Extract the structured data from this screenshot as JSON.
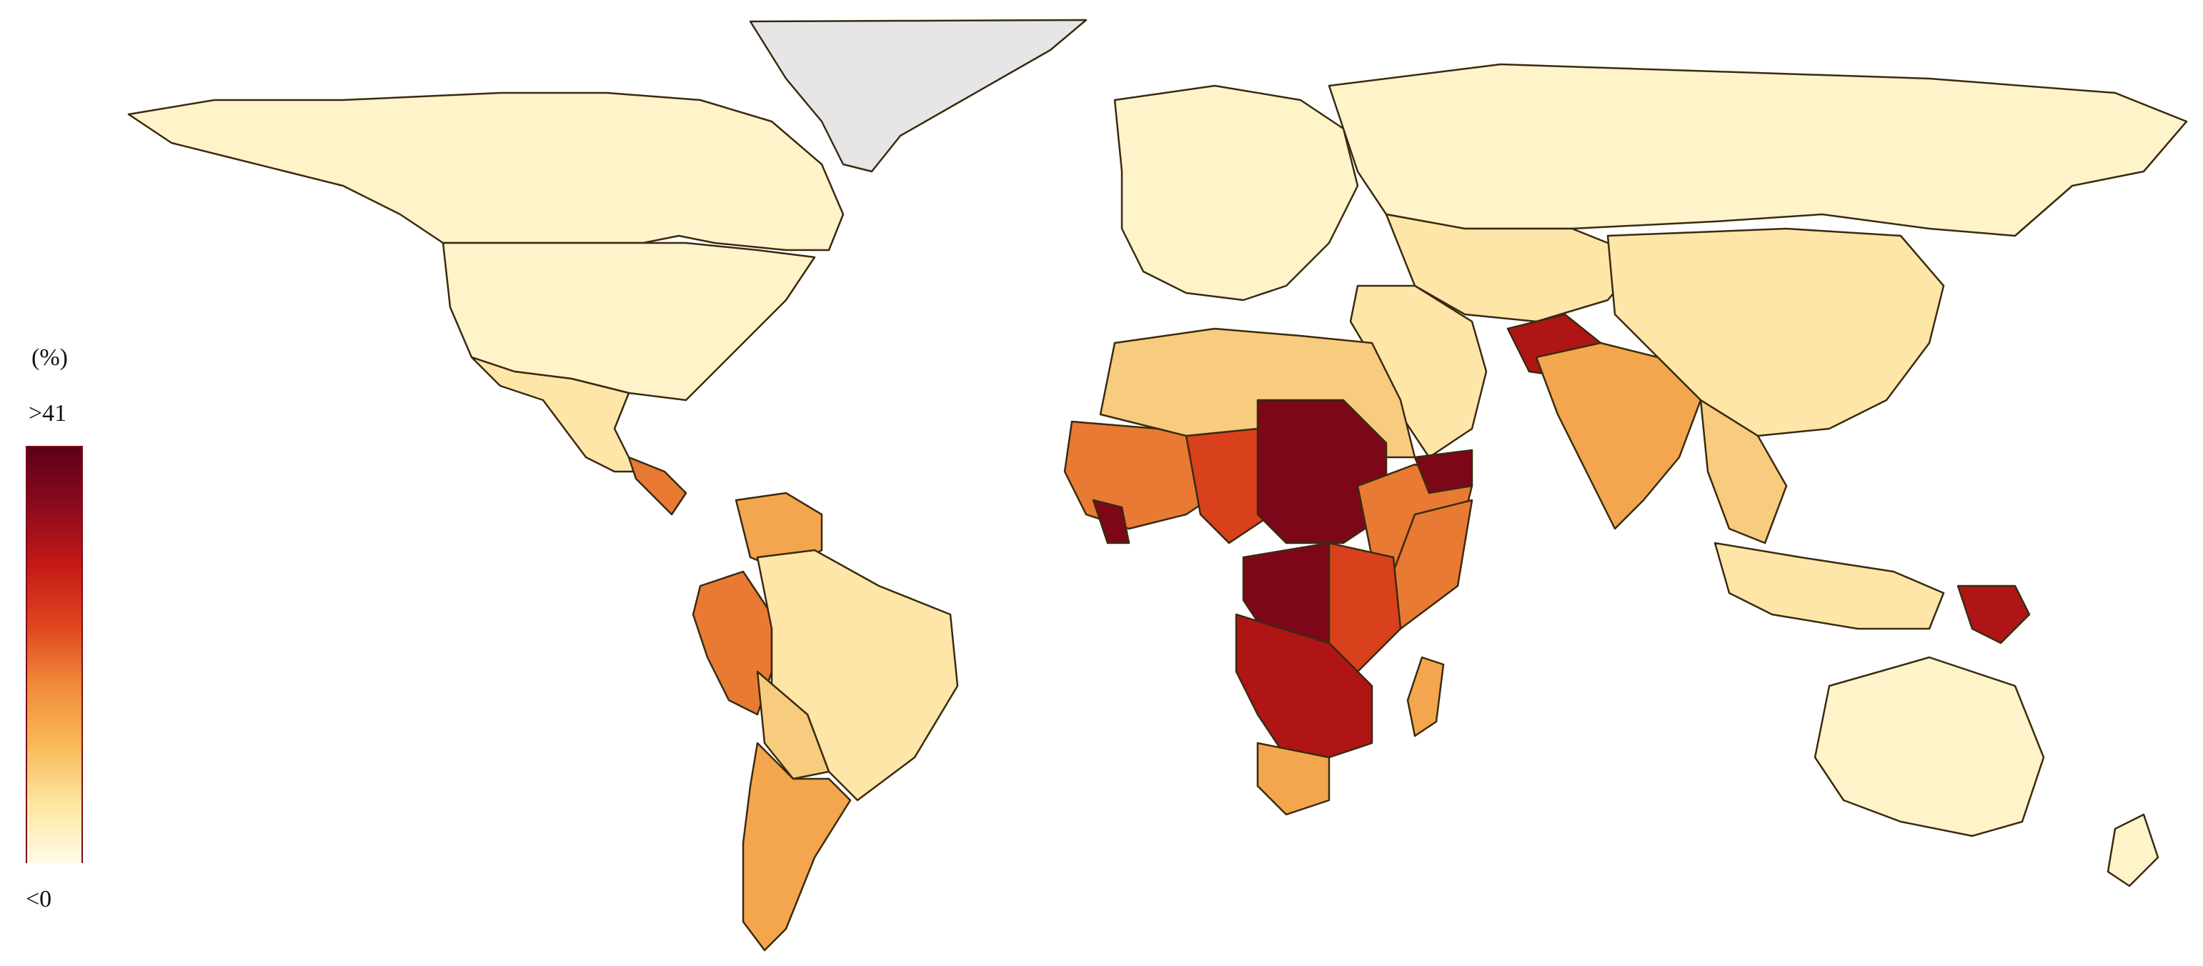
{
  "legend": {
    "unit": "(%)",
    "max_label": ">41",
    "min_label": "<0",
    "gradient": [
      "#fffbe6",
      "#fde6a0",
      "#f8b857",
      "#f08a3a",
      "#e0451f",
      "#c41a17",
      "#8c0a1e",
      "#5e0016"
    ]
  },
  "colors": {
    "no_data": "#e6e6e6",
    "lowest": "#fff3c9",
    "low": "#fde6a8",
    "mid_low": "#f8cc7e",
    "mid": "#f3a64d",
    "mid_high": "#e87a33",
    "high": "#d9401c",
    "very_high": "#b01515",
    "highest": "#7d0719",
    "border": "#3a2a10"
  }
}
